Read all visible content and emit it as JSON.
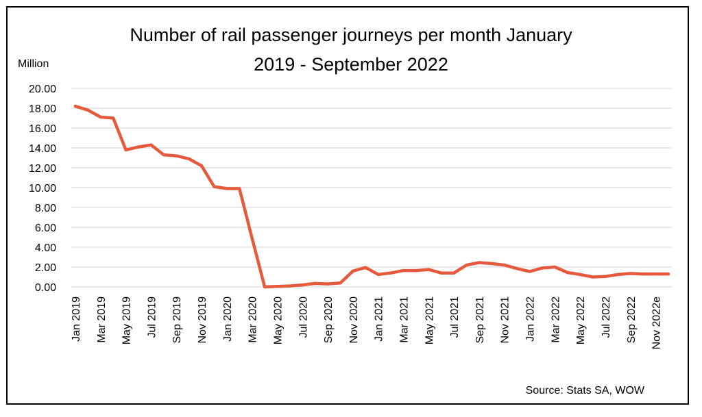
{
  "chart_data": {
    "type": "line",
    "title_line1": "Number of rail passenger journeys per month January",
    "title_line2": "2019 - September 2022",
    "unit_label": "Million",
    "source": "Source: Stats SA, WOW",
    "ylim": [
      0,
      20
    ],
    "yticks": [
      "0.00",
      "2.00",
      "4.00",
      "6.00",
      "8.00",
      "10.00",
      "12.00",
      "14.00",
      "16.00",
      "18.00",
      "20.00"
    ],
    "grid": true,
    "legend": "none",
    "x_tick_labels": [
      "Jan 2019",
      "Mar 2019",
      "May 2019",
      "Jul 2019",
      "Sep 2019",
      "Nov 2019",
      "Jan 2020",
      "Mar 2020",
      "May 2020",
      "Jul 2020",
      "Sep 2020",
      "Nov 2020",
      "Jan 2021",
      "Mar 2021",
      "May 2021",
      "Jul 2021",
      "Sep 2021",
      "Nov 2021",
      "Jan 2022",
      "Mar 2022",
      "May 2022",
      "Jul 2022",
      "Sep 2022",
      "Nov 2022e"
    ],
    "series": [
      {
        "color": "#e5593c",
        "values": [
          18.2,
          17.8,
          17.1,
          17.0,
          13.8,
          14.1,
          14.3,
          13.3,
          13.2,
          12.9,
          12.2,
          10.1,
          9.9,
          9.9,
          4.9,
          0.0,
          0.05,
          0.1,
          0.2,
          0.35,
          0.3,
          0.4,
          1.6,
          1.95,
          1.25,
          1.4,
          1.65,
          1.65,
          1.75,
          1.4,
          1.4,
          2.2,
          2.45,
          2.35,
          2.2,
          1.85,
          1.55,
          1.9,
          2.0,
          1.45,
          1.25,
          1.0,
          1.05,
          1.25,
          1.35,
          1.3,
          1.3,
          1.3
        ]
      }
    ]
  }
}
